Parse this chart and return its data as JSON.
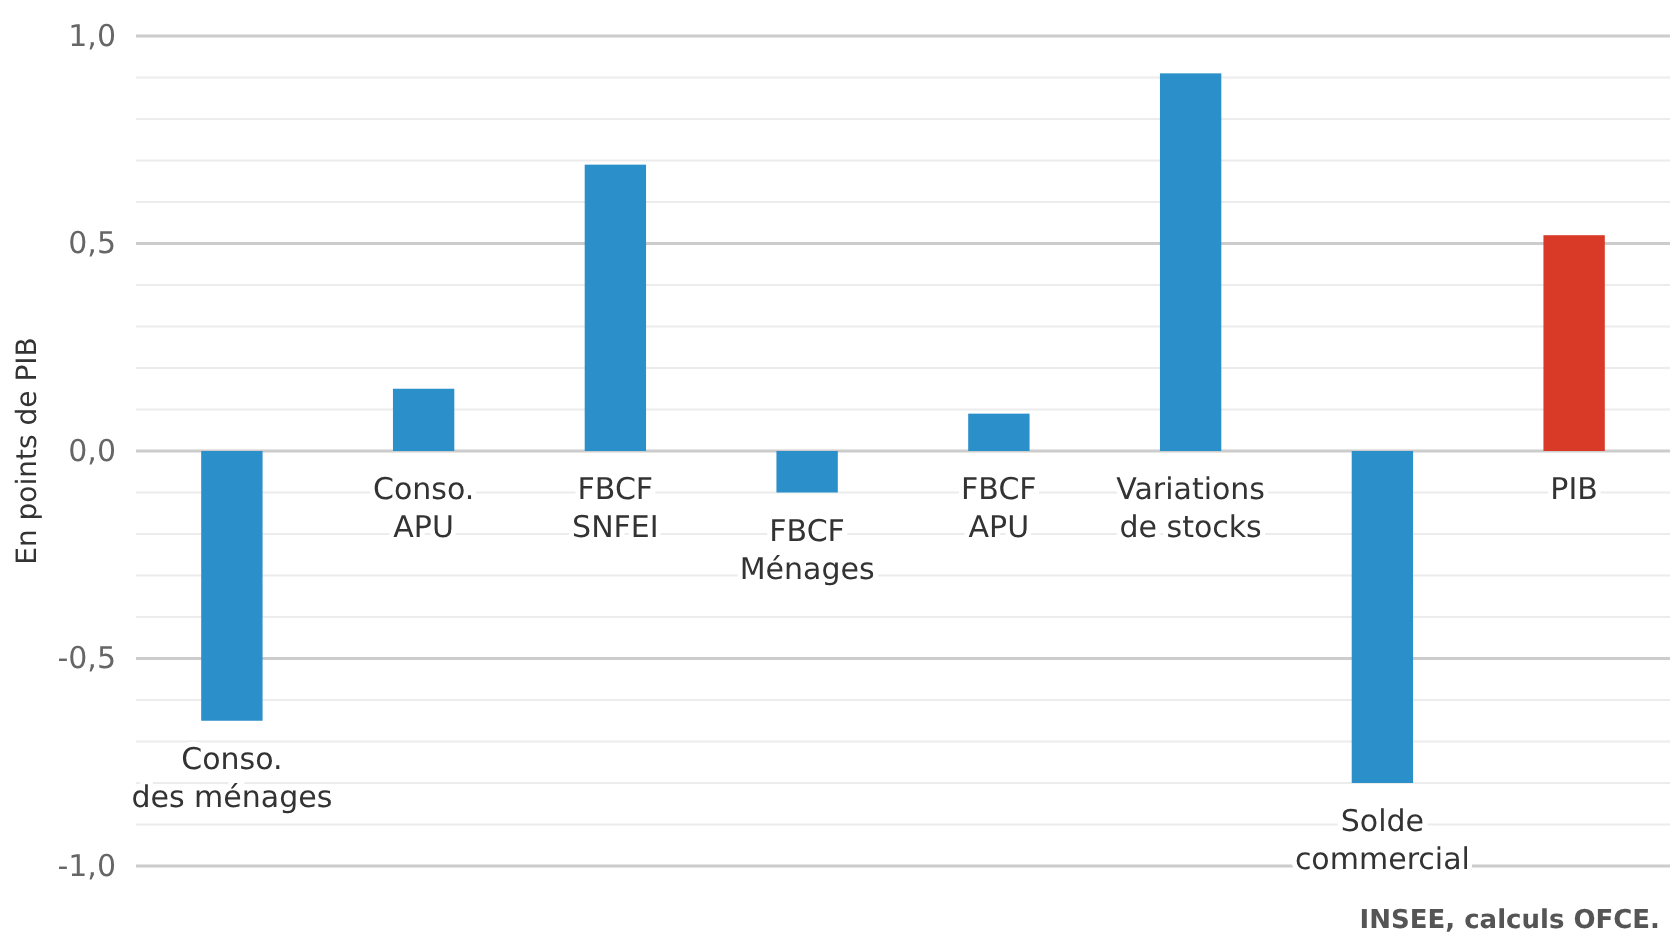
{
  "chart_data": {
    "type": "bar",
    "ylabel": "En points de PIB",
    "categories": [
      "Conso.\ndes ménages",
      "Conso.\nAPU",
      "FBCF\nSNFEI",
      "FBCF\nMénages",
      "FBCF\nAPU",
      "Variations\nde stocks",
      "Solde\ncommercial",
      "PIB"
    ],
    "values": [
      -0.65,
      0.15,
      0.69,
      -0.1,
      0.09,
      0.91,
      -0.8,
      0.52
    ],
    "colors": [
      "#2b8fca",
      "#2b8fca",
      "#2b8fca",
      "#2b8fca",
      "#2b8fca",
      "#2b8fca",
      "#2b8fca",
      "#d93a27"
    ],
    "ylim": [
      -1.0,
      1.0
    ],
    "yticks": [
      {
        "value": -1.0,
        "label": "-1,0"
      },
      {
        "value": -0.9,
        "label": null
      },
      {
        "value": -0.8,
        "label": null
      },
      {
        "value": -0.7,
        "label": null
      },
      {
        "value": -0.6,
        "label": null
      },
      {
        "value": -0.5,
        "label": "-0,5"
      },
      {
        "value": -0.4,
        "label": null
      },
      {
        "value": -0.3,
        "label": null
      },
      {
        "value": -0.2,
        "label": null
      },
      {
        "value": -0.1,
        "label": null
      },
      {
        "value": 0,
        "label": "0,0"
      },
      {
        "value": 0.1,
        "label": null
      },
      {
        "value": 0.2,
        "label": null
      },
      {
        "value": 0.3,
        "label": null
      },
      {
        "value": 0.4,
        "label": null
      },
      {
        "value": 0.5,
        "label": "0,5"
      },
      {
        "value": 0.6,
        "label": null
      },
      {
        "value": 0.7,
        "label": null
      },
      {
        "value": 0.8,
        "label": null
      },
      {
        "value": 0.9,
        "label": null
      },
      {
        "value": 1.0,
        "label": "1,0"
      }
    ],
    "grid": true,
    "annotations": [
      "INSEE, calculs OFCE."
    ]
  }
}
